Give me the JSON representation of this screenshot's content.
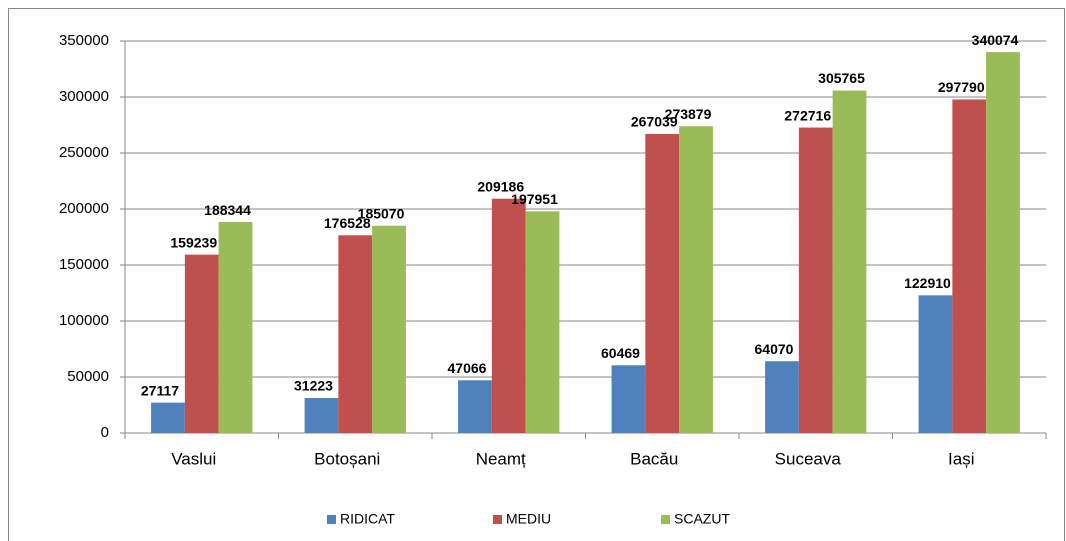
{
  "chart_data": {
    "type": "bar",
    "categories": [
      "Vaslui",
      "Botoșani",
      "Neamț",
      "Bacău",
      "Suceava",
      "Iași"
    ],
    "series": [
      {
        "name": "RIDICAT",
        "color": "#4f81bd",
        "values": [
          27117,
          31223,
          47066,
          60469,
          64070,
          122910
        ]
      },
      {
        "name": "MEDIU",
        "color": "#c0504d",
        "values": [
          159239,
          176528,
          209186,
          267039,
          272716,
          297790
        ]
      },
      {
        "name": "SCAZUT",
        "color": "#9bbb59",
        "values": [
          188344,
          185070,
          197951,
          273879,
          305765,
          340074
        ]
      }
    ],
    "ylim": [
      0,
      350000
    ],
    "yticks": [
      0,
      50000,
      100000,
      150000,
      200000,
      250000,
      300000,
      350000
    ],
    "grid": true,
    "legend": "bottom"
  }
}
